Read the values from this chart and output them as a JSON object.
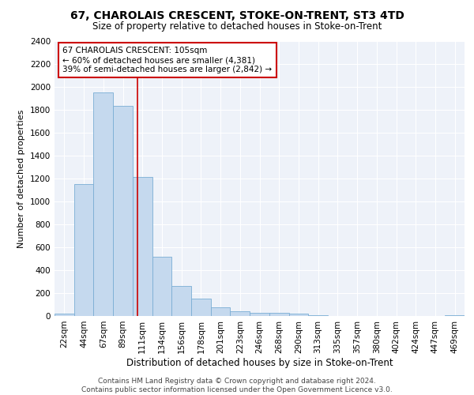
{
  "title1": "67, CHAROLAIS CRESCENT, STOKE-ON-TRENT, ST3 4TD",
  "title2": "Size of property relative to detached houses in Stoke-on-Trent",
  "xlabel": "Distribution of detached houses by size in Stoke-on-Trent",
  "ylabel": "Number of detached properties",
  "categories": [
    "22sqm",
    "44sqm",
    "67sqm",
    "89sqm",
    "111sqm",
    "134sqm",
    "156sqm",
    "178sqm",
    "201sqm",
    "223sqm",
    "246sqm",
    "268sqm",
    "290sqm",
    "313sqm",
    "335sqm",
    "357sqm",
    "380sqm",
    "402sqm",
    "424sqm",
    "447sqm",
    "469sqm"
  ],
  "values": [
    22,
    1155,
    1955,
    1840,
    1215,
    515,
    260,
    155,
    75,
    42,
    30,
    28,
    18,
    7,
    3,
    2,
    1,
    1,
    1,
    0,
    8
  ],
  "bar_color": "#c5d9ee",
  "bar_edge_color": "#7aadd4",
  "annotation_text": "67 CHAROLAIS CRESCENT: 105sqm\n← 60% of detached houses are smaller (4,381)\n39% of semi-detached houses are larger (2,842) →",
  "annotation_box_color": "#ffffff",
  "annotation_box_edge_color": "#cc0000",
  "vline_color": "#cc0000",
  "vline_x": 3.75,
  "ylim": [
    0,
    2400
  ],
  "yticks": [
    0,
    200,
    400,
    600,
    800,
    1000,
    1200,
    1400,
    1600,
    1800,
    2000,
    2200,
    2400
  ],
  "title1_fontsize": 10,
  "title2_fontsize": 8.5,
  "xlabel_fontsize": 8.5,
  "ylabel_fontsize": 8,
  "tick_fontsize": 7.5,
  "annot_fontsize": 7.5,
  "footer_fontsize": 6.5,
  "footer": "Contains HM Land Registry data © Crown copyright and database right 2024.\nContains public sector information licensed under the Open Government Licence v3.0.",
  "bg_color": "#eef2f9",
  "grid_color": "#ffffff"
}
